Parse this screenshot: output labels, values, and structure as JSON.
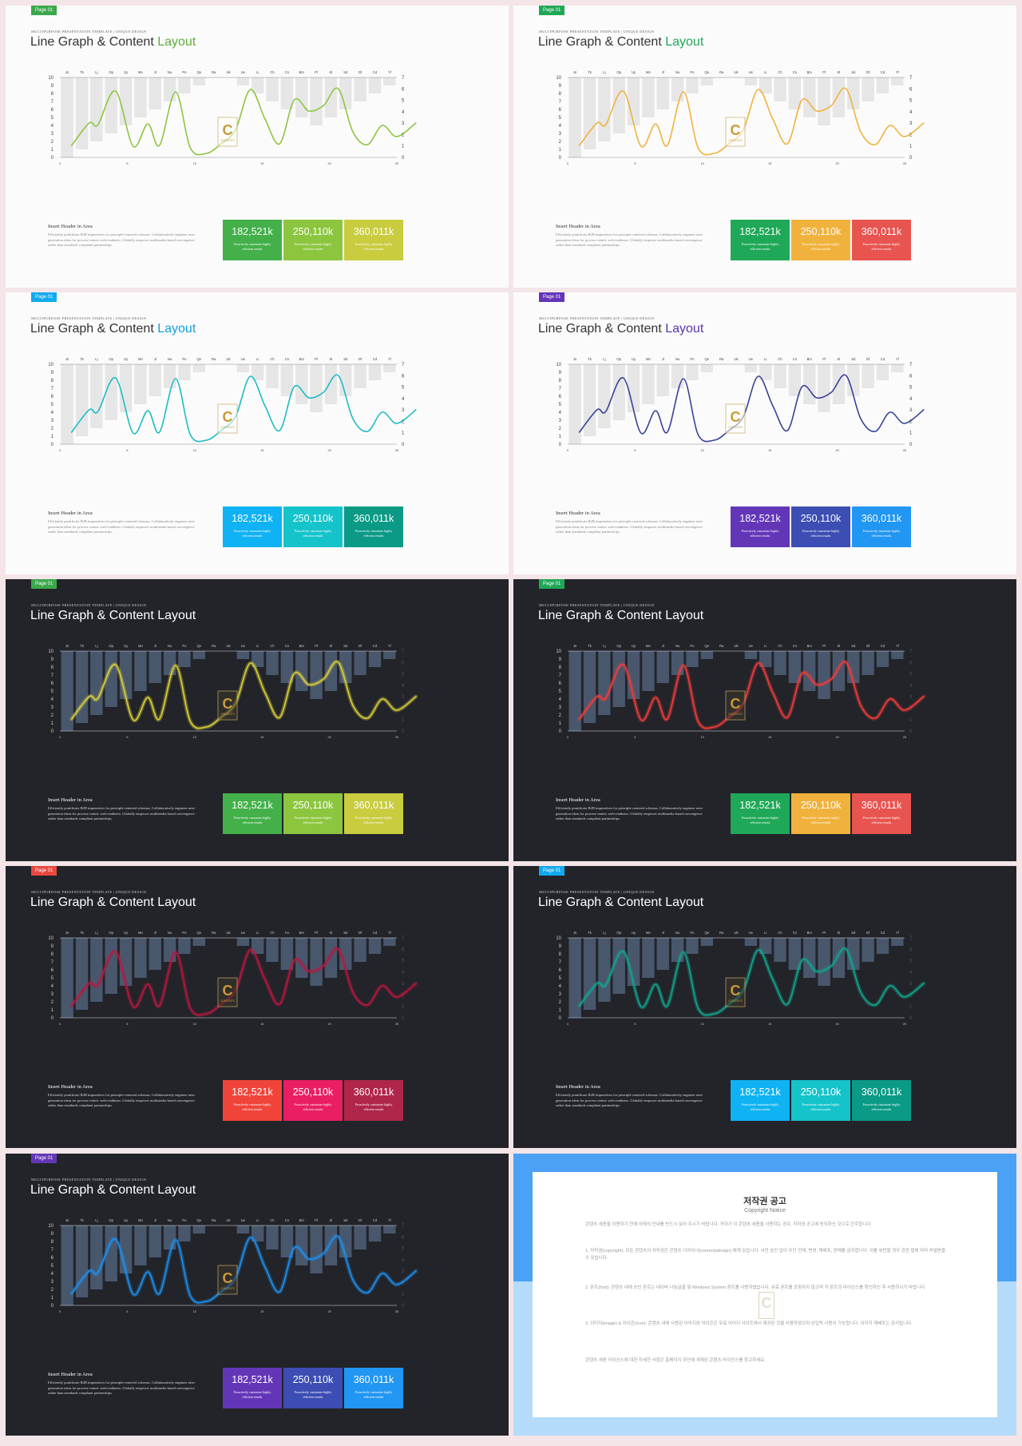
{
  "slides": [
    {
      "badge": "Page 01",
      "badge_color": "#3aa84a",
      "label": "MULTIPURPOSE PRESENTATION TEMPLATE | UNIQUE DESIGN",
      "title_main": "Line Graph & Content ",
      "title_accent": "Layout",
      "accent_color": "#5fae3b",
      "theme": "light",
      "line_color": "#8cc63f",
      "glow": false,
      "boxes": [
        {
          "value": "182,521k",
          "color": "#43b049"
        },
        {
          "value": "250,110k",
          "color": "#8cc63f"
        },
        {
          "value": "360,011k",
          "color": "#c9cc3f"
        }
      ]
    },
    {
      "badge": "Page 01",
      "badge_color": "#1fa857",
      "label": "MULTIPURPOSE PRESENTATION TEMPLATE | UNIQUE DESIGN",
      "title_main": "Line Graph & Content ",
      "title_accent": "Layout",
      "accent_color": "#1fa857",
      "theme": "light",
      "line_color": "#f0b23c",
      "glow": false,
      "boxes": [
        {
          "value": "182,521k",
          "color": "#1fa857"
        },
        {
          "value": "250,110k",
          "color": "#f0b23c"
        },
        {
          "value": "360,011k",
          "color": "#e85450"
        }
      ]
    },
    {
      "badge": "Page 01",
      "badge_color": "#12a9ef",
      "label": "MULTIPURPOSE PRESENTATION TEMPLATE | UNIQUE DESIGN",
      "title_main": "Line Graph & Content ",
      "title_accent": "Layout",
      "accent_color": "#12a0e0",
      "theme": "light",
      "line_color": "#1dbcc4",
      "glow": false,
      "boxes": [
        {
          "value": "182,521k",
          "color": "#0fb2f2"
        },
        {
          "value": "250,110k",
          "color": "#15c3cb"
        },
        {
          "value": "360,011k",
          "color": "#0a9a86"
        }
      ]
    },
    {
      "badge": "Page 01",
      "badge_color": "#6336b8",
      "label": "MULTIPURPOSE PRESENTATION TEMPLATE | UNIQUE DESIGN",
      "title_main": "Line Graph & Content ",
      "title_accent": "Layout",
      "accent_color": "#5a35b0",
      "theme": "light",
      "line_color": "#3a4197",
      "glow": false,
      "boxes": [
        {
          "value": "182,521k",
          "color": "#6336b8"
        },
        {
          "value": "250,110k",
          "color": "#3c4db4"
        },
        {
          "value": "360,011k",
          "color": "#2196f3"
        }
      ]
    },
    {
      "badge": "Page 01",
      "badge_color": "#3aa84a",
      "label": "MULTIPURPOSE PRESENTATION TEMPLATE | UNIQUE DESIGN",
      "title_main": "Line Graph & Content Layout",
      "title_accent": "",
      "accent_color": "#ffffff",
      "theme": "dark",
      "line_color": "#d9cf3a",
      "glow": true,
      "boxes": [
        {
          "value": "182,521k",
          "color": "#43b049"
        },
        {
          "value": "250,110k",
          "color": "#8cc63f"
        },
        {
          "value": "360,011k",
          "color": "#c9cc3f"
        }
      ]
    },
    {
      "badge": "Page 01",
      "badge_color": "#1fa857",
      "label": "MULTIPURPOSE PRESENTATION TEMPLATE | UNIQUE DESIGN",
      "title_main": "Line Graph & Content Layout",
      "title_accent": "",
      "accent_color": "#ffffff",
      "theme": "dark",
      "line_color": "#f03c3c",
      "glow": true,
      "boxes": [
        {
          "value": "182,521k",
          "color": "#1fa857"
        },
        {
          "value": "250,110k",
          "color": "#f0b23c"
        },
        {
          "value": "360,011k",
          "color": "#e85450"
        }
      ]
    },
    {
      "badge": "Page 01",
      "badge_color": "#e8483e",
      "label": "MULTIPURPOSE PRESENTATION TEMPLATE | UNIQUE DESIGN",
      "title_main": "Line Graph & Content Layout",
      "title_accent": "",
      "accent_color": "#ffffff",
      "theme": "dark",
      "line_color": "#b8183f",
      "glow": true,
      "boxes": [
        {
          "value": "182,521k",
          "color": "#f0443a"
        },
        {
          "value": "250,110k",
          "color": "#e91e63"
        },
        {
          "value": "360,011k",
          "color": "#b0264a"
        }
      ]
    },
    {
      "badge": "Page 01",
      "badge_color": "#12a9ef",
      "label": "MULTIPURPOSE PRESENTATION TEMPLATE | UNIQUE DESIGN",
      "title_main": "Line Graph & Content Layout",
      "title_accent": "",
      "accent_color": "#ffffff",
      "theme": "dark",
      "line_color": "#11a58e",
      "glow": true,
      "boxes": [
        {
          "value": "182,521k",
          "color": "#0fb2f2"
        },
        {
          "value": "250,110k",
          "color": "#15c3cb"
        },
        {
          "value": "360,011k",
          "color": "#0a9a86"
        }
      ]
    },
    {
      "badge": "Page 01",
      "badge_color": "#6336b8",
      "label": "MULTIPURPOSE PRESENTATION TEMPLATE | UNIQUE DESIGN",
      "title_main": "Line Graph & Content Layout",
      "title_accent": "",
      "accent_color": "#ffffff",
      "theme": "dark",
      "line_color": "#1e8fee",
      "glow": true,
      "boxes": [
        {
          "value": "182,521k",
          "color": "#6336b8"
        },
        {
          "value": "250,110k",
          "color": "#3c4db4"
        },
        {
          "value": "360,011k",
          "color": "#2196f3"
        }
      ]
    }
  ],
  "content": {
    "header": "Insert Header in Area",
    "body": "Efficiently pontificate B2B imperatives for principle-centered schemas. Collaboratively engineer next-generation ideas for process-centric web-readiness. Globally empower multimedia based convergence rather than standards compliant partnerships.",
    "box_sub": "Proactively customize highly efficient results"
  },
  "chart_data": {
    "type": "bar+line",
    "categories": [
      "Jn",
      "Tk",
      "Lj",
      "Op",
      "Uy",
      "Mn",
      "Jl",
      "Nu",
      "Po",
      "Qe",
      "Ra",
      "Uk",
      "Ue",
      "Li",
      "Ch",
      "Cn",
      "Bm",
      "Pl",
      "Kl",
      "Sd",
      "Df",
      "Cd",
      "Yf"
    ],
    "bar_values": [
      10,
      9,
      8,
      7,
      6,
      5,
      4,
      3,
      2,
      1,
      0,
      0,
      1,
      2,
      3,
      4,
      5,
      6,
      5,
      4,
      3,
      2,
      1
    ],
    "left_axis": {
      "ylim": [
        0,
        10
      ],
      "ticks": [
        "0",
        "1",
        "2",
        "3",
        "4",
        "5",
        "6",
        "7",
        "8",
        "9",
        "10"
      ]
    },
    "right_axis": {
      "ylim": [
        0,
        7
      ],
      "ticks": [
        "0",
        "1",
        "2",
        "3",
        "4",
        "5",
        "6",
        "7"
      ]
    },
    "x_ticks": [
      "0",
      "5",
      "10",
      "15",
      "20",
      "25"
    ],
    "line_points": [
      [
        0.8,
        1.5
      ],
      [
        2,
        4.3
      ],
      [
        2.6,
        4.1
      ],
      [
        3.8,
        8.3
      ],
      [
        5,
        1.4
      ],
      [
        6,
        4.2
      ],
      [
        6.8,
        1.5
      ],
      [
        7.9,
        8.2
      ],
      [
        8.9,
        1.2
      ],
      [
        10,
        0.5
      ],
      [
        11,
        1.7
      ],
      [
        12,
        3.5
      ],
      [
        13,
        8.5
      ],
      [
        14,
        4.8
      ],
      [
        15,
        1.7
      ],
      [
        16,
        7.2
      ],
      [
        17,
        5.8
      ],
      [
        18,
        6.5
      ],
      [
        19,
        8.6
      ],
      [
        20,
        3.2
      ],
      [
        21,
        1.6
      ],
      [
        22,
        4.0
      ],
      [
        23,
        2.6
      ],
      [
        24.3,
        4.3
      ]
    ],
    "grid": false,
    "legend": "none"
  },
  "watermark": {
    "letter": "C",
    "text": "CONTENTS"
  },
  "notice": {
    "title": "저작권 공고",
    "subtitle": "Copyright Notice",
    "paragraphs": [
      "콘텐츠 세종을 이용하기 전에 아래의 안내를 반드시 읽어 주시기 바랍니다. 귀하가 이 콘텐츠 세종을 사용하는 경우, 저작권 공고에 동의하신 것으로 간주합니다.",
      "1. 저작권(copyright): 모든 콘텐츠의 저작권은 콘텐츠 디자이너(contentsdesign) 에게 있습니다. 사전 승인 없이 무단 전재, 변경, 재배포, 판매를 금지합니다. 이를 위반할 경우 관련 법에 따라 처벌받을 수 있습니다.",
      "2. 폰트(font): 콘텐츠 내에 쓰인 폰트는 네이버 나눔글꼴 및 Windows System 폰트를 사용하였습니다. 유료 폰트를 포함하지 않으며 각 폰트의 라이선스를 확인하신 후 사용하시기 바랍니다.",
      "3. 이미지(image) & 아이콘(icon): 콘텐츠 내에 사용된 이미지와 아이콘은 무료 이미지 사이트에서 제공된 것을 사용하였으며 상업적 사용이 가능합니다. 이미지 재배포는 금지됩니다.",
      "콘텐츠 세종 라이선스에 대한 자세한 사항은 홈페이지 하단에 게재된 콘텐츠 라이선스를 참고하세요."
    ]
  }
}
